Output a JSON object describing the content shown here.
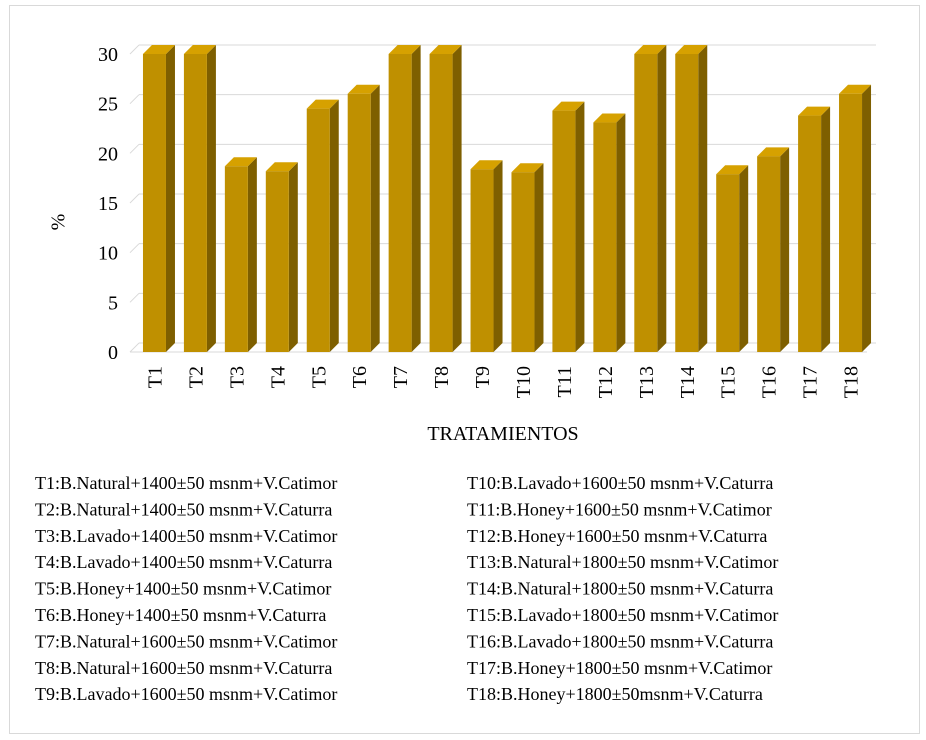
{
  "chart_data": {
    "type": "bar3d",
    "y_label": "%",
    "x_label": "TRATAMIENTOS",
    "categories": [
      "T1",
      "T2",
      "T3",
      "T4",
      "T5",
      "T6",
      "T7",
      "T8",
      "T9",
      "T10",
      "T11",
      "T12",
      "T13",
      "T14",
      "T15",
      "T16",
      "T17",
      "T18"
    ],
    "values": [
      30,
      30,
      18.7,
      18.2,
      24.5,
      26,
      30,
      30,
      18.4,
      18.1,
      24.3,
      23.1,
      30,
      30,
      17.9,
      19.7,
      23.8,
      26
    ],
    "color": "#bf9000",
    "ylim": [
      0,
      30
    ],
    "yticks": [
      0,
      5,
      10,
      15,
      20,
      25,
      30
    ],
    "grid": true,
    "legend_notes": [
      "T1:B.Natural+1400±50 msnm+V.Catimor",
      "T2:B.Natural+1400±50 msnm+V.Caturra",
      "T3:B.Lavado+1400±50 msnm+V.Catimor",
      "T4:B.Lavado+1400±50 msnm+V.Caturra",
      "T5:B.Honey+1400±50 msnm+V.Catimor",
      "T6:B.Honey+1400±50 msnm+V.Caturra",
      "T7:B.Natural+1600±50 msnm+V.Catimor",
      "T8:B.Natural+1600±50 msnm+V.Caturra",
      "T9:B.Lavado+1600±50 msnm+V.Catimor",
      "T10:B.Lavado+1600±50 msnm+V.Caturra",
      "T11:B.Honey+1600±50 msnm+V.Catimor",
      "T12:B.Honey+1600±50 msnm+V.Caturra",
      "T13:B.Natural+1800±50 msnm+V.Catimor",
      "T14:B.Natural+1800±50 msnm+V.Caturra",
      "T15:B.Lavado+1800±50 msnm+V.Catimor",
      "T16:B.Lavado+1800±50 msnm+V.Caturra",
      "T17:B.Honey+1800±50 msnm+V.Catimor",
      "T18:B.Honey+1800±50msnm+V.Caturra"
    ]
  }
}
